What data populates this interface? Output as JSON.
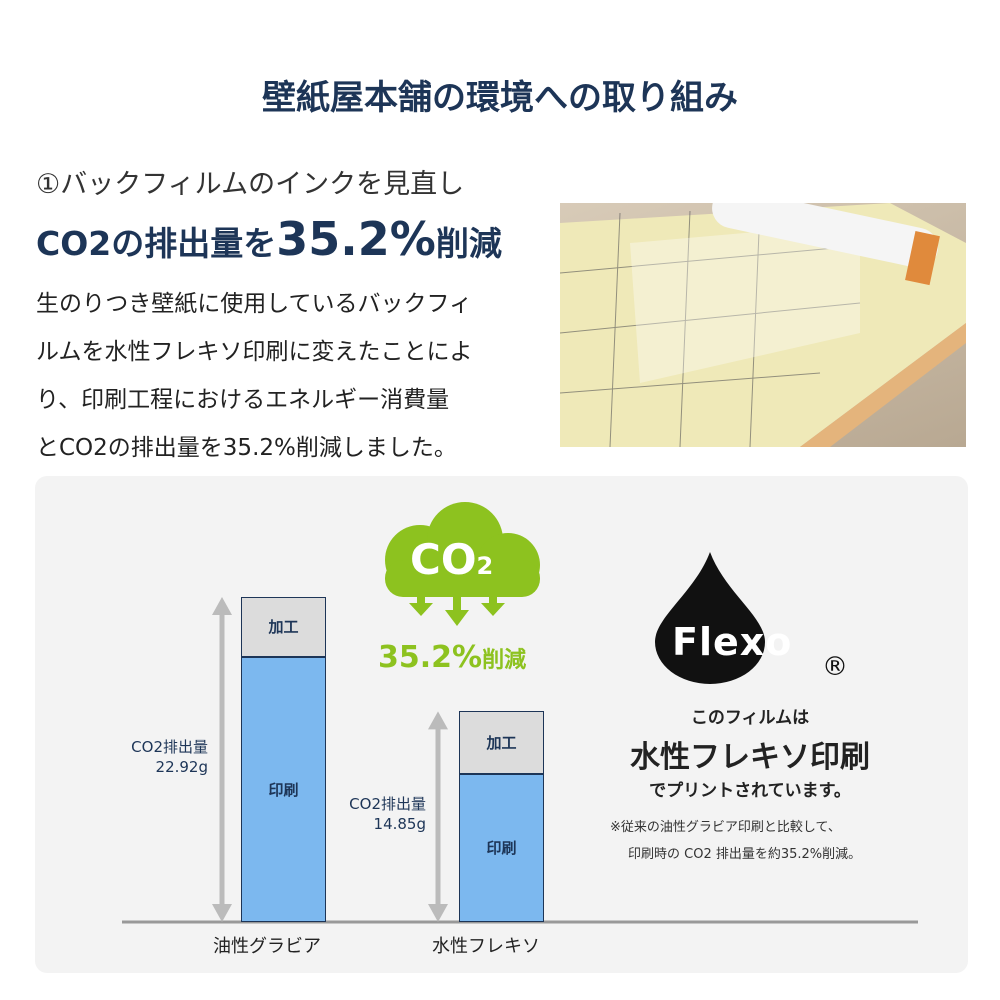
{
  "title": "壁紙屋本舗の環境への取り組み",
  "subtitle": "①バックフィルムのインクを見直し",
  "headline": {
    "prefix": "CO2の排出量を",
    "percent": "35.2%",
    "suffix": "削減"
  },
  "body": [
    "生のりつき壁紙に使用しているバックフィ",
    "ルムを水性フレキソ印刷に変えたことによ",
    "り、印刷工程におけるエネルギー消費量",
    "とCO2の排出量を35.2%削減しました。"
  ],
  "cloud": {
    "text": "CO",
    "sub": "2",
    "reduction": "35.2%",
    "reduction_suffix": "削減"
  },
  "flexo": {
    "logo": "Flexo",
    "registered": "®",
    "line1": "このフィルムは",
    "line2": "水性フレキソ印刷",
    "line3": "でプリントされています。",
    "note1": "※従来の油性グラビア印刷と比較して、",
    "note2": "印刷時の CO2 排出量を約35.2%削減。"
  },
  "chart_data": {
    "type": "bar",
    "stacked": true,
    "categories": [
      "油性グラビア",
      "水性フレキソ"
    ],
    "series": [
      {
        "name": "印刷",
        "values": [
          18.7,
          10.5
        ]
      },
      {
        "name": "加工",
        "values": [
          4.2,
          4.4
        ]
      }
    ],
    "totals": [
      22.92,
      14.85
    ],
    "total_labels": [
      {
        "label": "CO2排出量",
        "value": "22.92g"
      },
      {
        "label": "CO2排出量",
        "value": "14.85g"
      }
    ],
    "colors": {
      "印刷": "#7cb8ef",
      "加工": "#dcdcdc"
    },
    "ylim": [
      0,
      22.92
    ]
  },
  "colors": {
    "navy": "#1d3557",
    "green": "#8dc21f"
  }
}
